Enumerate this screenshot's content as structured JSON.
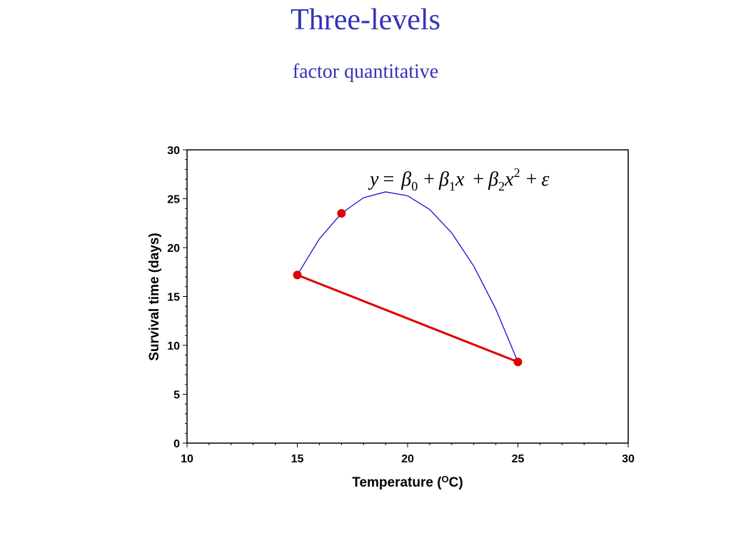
{
  "slide": {
    "title": "Three-levels",
    "subtitle": "factor quantitative"
  },
  "chart_data": {
    "type": "line",
    "xlabel": "Temperature (",
    "xlabel_sup": "O",
    "xlabel_end": "C)",
    "ylabel": "Survival time (days)",
    "xlim": [
      10,
      30
    ],
    "ylim": [
      0,
      30
    ],
    "x_ticks": [
      10,
      15,
      20,
      25,
      30
    ],
    "y_ticks": [
      0,
      5,
      10,
      15,
      20,
      25,
      30
    ],
    "grid": false,
    "equation": {
      "y": "y",
      "eq": "=",
      "beta": "β",
      "sub0": "0",
      "sub1": "1",
      "sub2": "2",
      "plus": "+",
      "x": "x",
      "sup2": "2",
      "eps": "ε"
    },
    "series": [
      {
        "kind": "quadratic-fit",
        "color": "#0000cc",
        "x": [
          15,
          16,
          17,
          18,
          19,
          20,
          21,
          22,
          23,
          24,
          25
        ],
        "y": [
          17.2,
          20.9,
          23.5,
          25.1,
          25.7,
          25.3,
          23.9,
          21.5,
          18.1,
          13.7,
          8.3
        ]
      },
      {
        "kind": "linear",
        "color": "#dd0000",
        "x": [
          15,
          25
        ],
        "y": [
          17.2,
          8.3
        ]
      },
      {
        "kind": "observed",
        "color": "#dd0000",
        "x": [
          15,
          17,
          25
        ],
        "y": [
          17.2,
          23.5,
          8.3
        ]
      }
    ]
  }
}
